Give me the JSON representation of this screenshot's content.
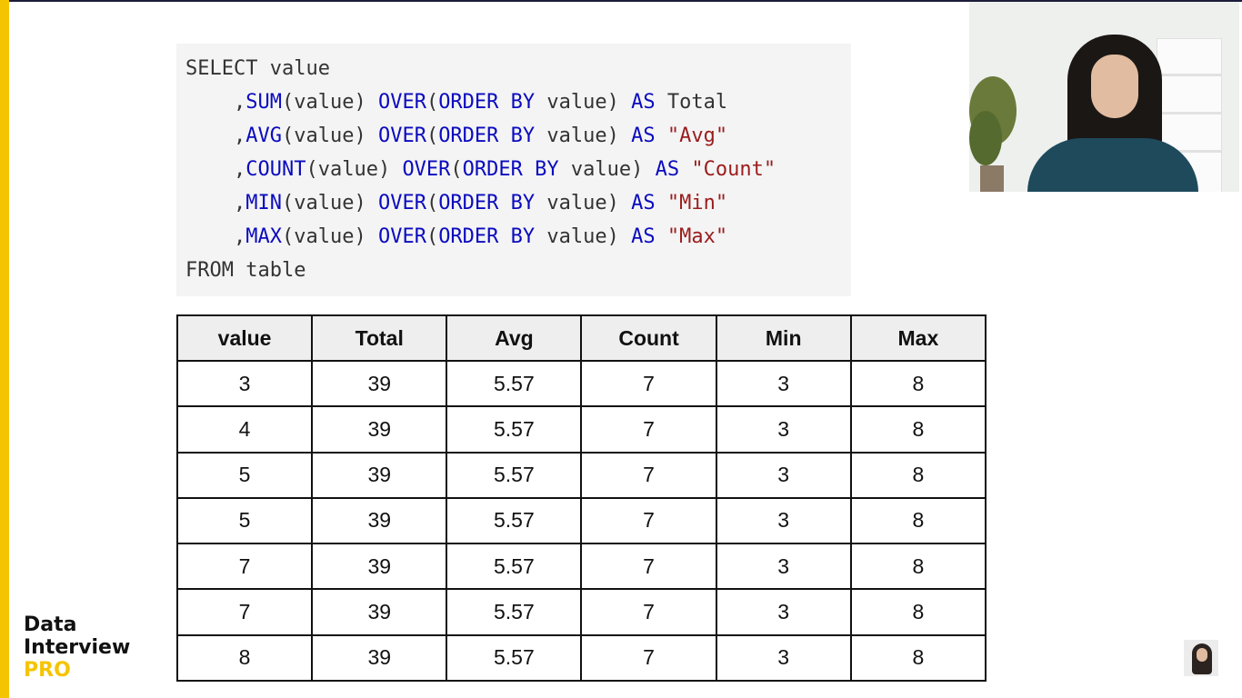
{
  "code": {
    "line1": {
      "select": "SELECT value"
    },
    "line2": {
      "prefix": ",",
      "func": "SUM",
      "arg": "(value) ",
      "over": "OVER",
      "paren": "(",
      "orderby": "ORDER BY",
      "val": " value) ",
      "as": "AS",
      "alias": " Total"
    },
    "line3": {
      "prefix": ",",
      "func": "AVG",
      "arg": "(value) ",
      "over": "OVER",
      "paren": "(",
      "orderby": "ORDER BY",
      "val": " value) ",
      "as": "AS",
      "alias": "\"Avg\""
    },
    "line4": {
      "prefix": ",",
      "func": "COUNT",
      "arg": "(value) ",
      "over": "OVER",
      "paren": "(",
      "orderby": "ORDER BY",
      "val": " value) ",
      "as": "AS",
      "alias": "\"Count\""
    },
    "line5": {
      "prefix": ",",
      "func": "MIN",
      "arg": "(value) ",
      "over": "OVER",
      "paren": "(",
      "orderby": "ORDER BY",
      "val": " value) ",
      "as": "AS",
      "alias": "\"Min\""
    },
    "line6": {
      "prefix": ",",
      "func": "MAX",
      "arg": "(value) ",
      "over": "OVER",
      "paren": "(",
      "orderby": "ORDER BY",
      "val": " value) ",
      "as": "AS",
      "alias": "\"Max\""
    },
    "line7": {
      "from": "FROM table"
    }
  },
  "table": {
    "headers": [
      "value",
      "Total",
      "Avg",
      "Count",
      "Min",
      "Max"
    ],
    "rows": [
      [
        "3",
        "39",
        "5.57",
        "7",
        "3",
        "8"
      ],
      [
        "4",
        "39",
        "5.57",
        "7",
        "3",
        "8"
      ],
      [
        "5",
        "39",
        "5.57",
        "7",
        "3",
        "8"
      ],
      [
        "5",
        "39",
        "5.57",
        "7",
        "3",
        "8"
      ],
      [
        "7",
        "39",
        "5.57",
        "7",
        "3",
        "8"
      ],
      [
        "7",
        "39",
        "5.57",
        "7",
        "3",
        "8"
      ],
      [
        "8",
        "39",
        "5.57",
        "7",
        "3",
        "8"
      ]
    ]
  },
  "logo": {
    "word1": "Data",
    "word2": "Interview",
    "word3": "PRO"
  },
  "colors": {
    "accent_yellow": "#f5c400",
    "keyword_blue": "#0b0bbf",
    "string_red": "#9b1c1c",
    "header_bg": "#eeeeee"
  }
}
